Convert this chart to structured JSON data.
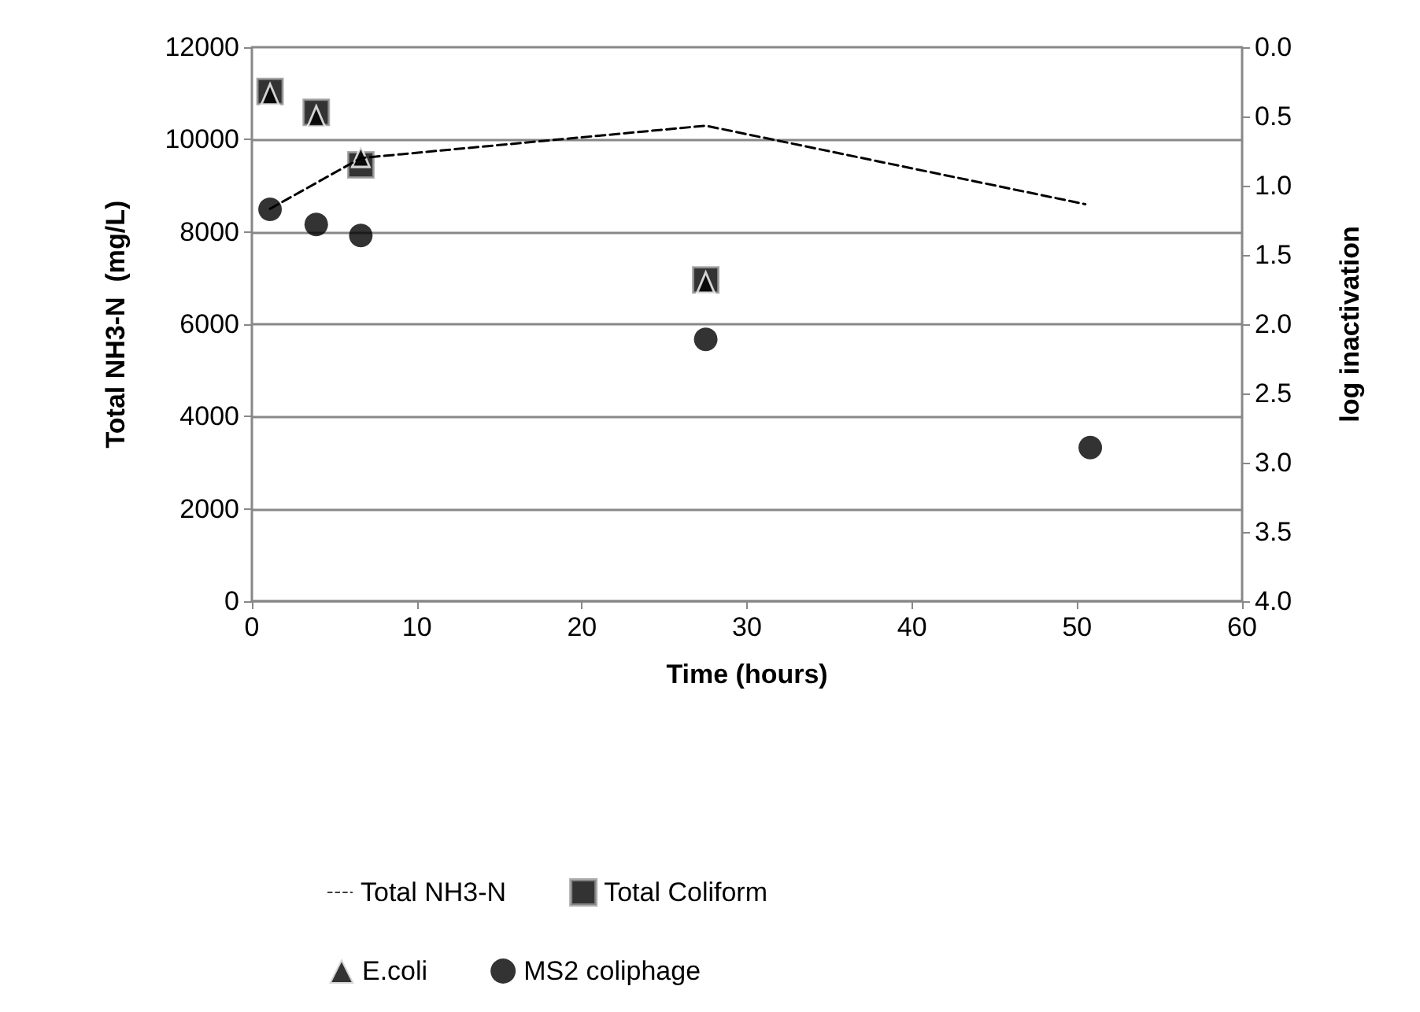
{
  "chart_data": {
    "type": "scatter",
    "xlabel": "Time (hours)",
    "ylabel": "Total NH3-N  (mg/L)",
    "y2label": "log inactivation",
    "xlim": [
      0,
      60
    ],
    "xticks": [
      0,
      10,
      20,
      30,
      40,
      50,
      60
    ],
    "ylim": [
      0,
      12000
    ],
    "yticks": [
      0,
      2000,
      4000,
      6000,
      8000,
      10000,
      12000
    ],
    "y2lim": [
      4.0,
      0.0
    ],
    "y2ticks": [
      {
        "value": 0,
        "label": "0.0"
      },
      0.5,
      {
        "value": 1,
        "label": "1.0"
      },
      1.5,
      {
        "value": 2,
        "label": "2.0"
      },
      2.5,
      {
        "value": 3,
        "label": "3.0"
      },
      3.5,
      {
        "value": 4,
        "label": "4.0"
      }
    ],
    "grid": "y",
    "legend": "bottom",
    "series": [
      {
        "name": "Total NH3-N",
        "type": "line",
        "line_style": "dashed",
        "marker": "none",
        "color": "#000000",
        "x": [
          1.1,
          6.6,
          27.5,
          50.5
        ],
        "values": [
          8500,
          9600,
          10300,
          8600
        ]
      },
      {
        "name": "Total Coliform",
        "type": "scatter",
        "axis": "y2",
        "marker": "square",
        "color": "#000000",
        "x": [
          1.1,
          3.9,
          6.6,
          27.5
        ],
        "values": [
          0.32,
          0.47,
          0.85,
          1.68
        ]
      },
      {
        "name": "E.coli",
        "type": "scatter",
        "axis": "y2",
        "marker": "triangle",
        "color": "#000000",
        "x": [
          1.1,
          3.9,
          6.6,
          27.5
        ],
        "values": [
          0.34,
          0.5,
          0.79,
          1.7
        ]
      },
      {
        "name": "MS2 coliphage",
        "type": "scatter",
        "axis": "y2",
        "marker": "circle",
        "color": "#000000",
        "x": [
          1.1,
          3.9,
          6.6,
          27.5,
          50.8
        ],
        "values": [
          1.17,
          1.28,
          1.36,
          2.11,
          2.89
        ]
      }
    ]
  }
}
